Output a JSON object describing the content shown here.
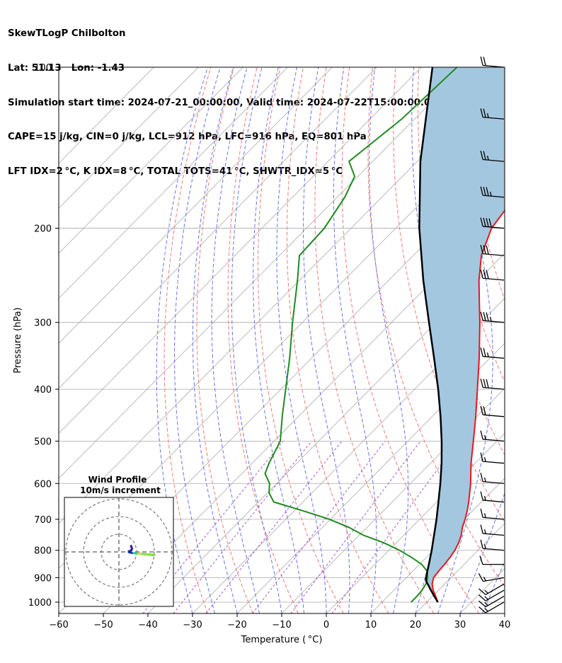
{
  "header": {
    "line1": "SkewTLogP Chilbolton",
    "line2": "Lat: 51.13   Lon: -1.43",
    "line3": "Simulation start time: 2024-07-21_00:00:00, Valid time: 2024-07-22T15:00:00.00",
    "line4": "CAPE=15 j/kg, CIN=0 j/kg, LCL=912 hPa, LFC=916 hPa, EQ=801 hPa",
    "line5": "LFT IDX=2 °C, K IDX=8 °C, TOTAL TOTS=41 °C, SHWTR_IDX=5 °C"
  },
  "chart_data": {
    "type": "line",
    "title": "SkewTLogP Chilbolton",
    "xlabel": "Temperature ( °C)",
    "ylabel": "Pressure (hPa)",
    "xlim": [
      -60,
      40
    ],
    "ylim": [
      1050,
      100
    ],
    "yscale": "log",
    "grid": true,
    "x_ticks": [
      "−60",
      "−50",
      "−40",
      "−30",
      "−20",
      "−10",
      "0",
      "10",
      "20",
      "30",
      "40"
    ],
    "y_ticks": [
      "100",
      "200",
      "300",
      "400",
      "500",
      "600",
      "700",
      "800",
      "900",
      "1000"
    ],
    "colors": {
      "temperature": "#e8161d",
      "dewpoint": "#1f8a1f",
      "parcel": "#000000",
      "cape_fill": "#a4c7e0",
      "dry_adiabat": "#f07b74",
      "moist_adiabat": "#6873f0",
      "mixing_ratio": "#a04fd0",
      "isotherm": "#aaaaaa"
    },
    "series": [
      {
        "role": "temperature",
        "p": [
          1000,
          975,
          950,
          925,
          900,
          875,
          850,
          825,
          800,
          775,
          750,
          725,
          700,
          675,
          650,
          600,
          550,
          500,
          450,
          400,
          350,
          300,
          275,
          250,
          225,
          200,
          175,
          150,
          125,
          100
        ],
        "t": [
          22.5,
          20.7,
          18.8,
          17.2,
          16.1,
          15.8,
          15.6,
          15.3,
          14.8,
          14.0,
          12.9,
          11.4,
          10.2,
          8.8,
          7.2,
          3.5,
          -0.9,
          -5.3,
          -10.2,
          -15.9,
          -22.4,
          -30.2,
          -34.8,
          -39.8,
          -44.7,
          -48.5,
          -50.2,
          -52.0,
          -54.6,
          -57.5
        ]
      },
      {
        "role": "dewpoint",
        "p": [
          1000,
          975,
          950,
          925,
          900,
          875,
          850,
          825,
          800,
          775,
          750,
          725,
          700,
          675,
          650,
          625,
          600,
          575,
          550,
          500,
          450,
          400,
          350,
          300,
          250,
          225,
          200,
          175,
          160,
          150,
          125,
          100
        ],
        "t": [
          16.5,
          16.5,
          16.3,
          15.8,
          14.8,
          13.2,
          10.5,
          6.7,
          2.4,
          -2.7,
          -9.0,
          -14.0,
          -20.2,
          -28.0,
          -36.5,
          -39.6,
          -41.6,
          -44.8,
          -46.2,
          -48.6,
          -53.6,
          -58.9,
          -64.9,
          -72.2,
          -80.5,
          -85.5,
          -86.0,
          -88.3,
          -90.7,
          -95.3,
          -92.9,
          -92.0
        ]
      },
      {
        "role": "parcel",
        "p": [
          1000,
          975,
          950,
          925,
          912,
          900,
          850,
          800,
          750,
          700,
          650,
          600,
          550,
          500,
          450,
          400,
          350,
          300,
          250,
          200,
          150,
          100
        ],
        "t": [
          22.5,
          20.4,
          18.3,
          16.2,
          15.1,
          14.4,
          12.1,
          9.6,
          6.8,
          3.8,
          0.4,
          -3.3,
          -7.5,
          -12.4,
          -18.1,
          -24.7,
          -32.5,
          -41.6,
          -52.3,
          -64.7,
          -79.3,
          -97.5
        ]
      }
    ],
    "wind_barbs": {
      "p": [
        1000,
        975,
        950,
        925,
        900,
        850,
        800,
        750,
        700,
        650,
        600,
        550,
        500,
        450,
        400,
        350,
        300,
        250,
        225,
        200,
        175,
        150,
        125,
        100
      ],
      "speed_kt": [
        15,
        15,
        15,
        15,
        15,
        10,
        15,
        15,
        15,
        15,
        15,
        15,
        15,
        20,
        30,
        25,
        35,
        30,
        30,
        40,
        35,
        25,
        25,
        20
      ],
      "direction_deg": [
        240,
        240,
        240,
        240,
        260,
        270,
        275,
        275,
        275,
        275,
        275,
        275,
        275,
        275,
        275,
        275,
        275,
        275,
        275,
        275,
        275,
        275,
        275,
        275
      ]
    },
    "inset": {
      "title_line1": "Wind Profile",
      "title_line2": "10m/s increment",
      "type": "hodograph",
      "rings_ms": [
        10,
        20,
        30
      ]
    }
  }
}
